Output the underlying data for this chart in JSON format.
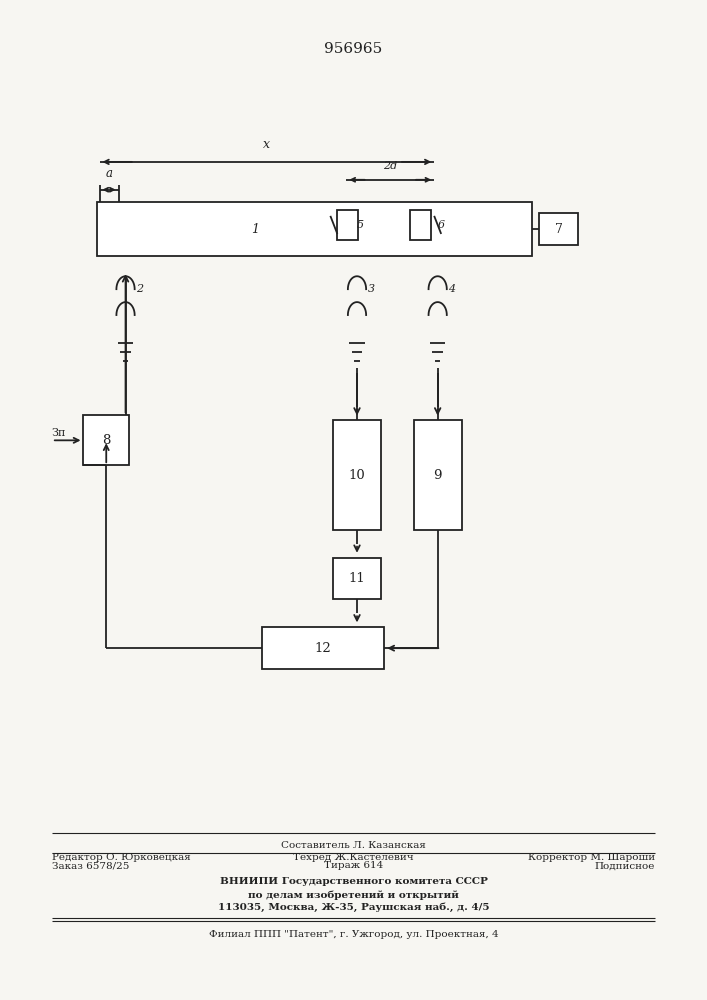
{
  "title": "956965",
  "bg": "#f7f6f2",
  "lc": "#222222",
  "lw": 1.3,
  "footer": {
    "r1_left": "Редактор О. Юрковецкая",
    "r1_ctop": "Составитель Л. Казанская",
    "r1_cbot": "Техред Ж.Кастелевич",
    "r1_right": "Корректор М. Шароши",
    "r2_c1": "Заказ 6578/25",
    "r2_c2": "Тираж 614",
    "r2_c3": "Подписное",
    "r3": "ВНИИПИ Государственного комитета СССР",
    "r4": "по делам изобретений и открытий",
    "r5": "113035, Москва, Ж-35, Раушская наб., д. 4/5",
    "r6": "Филиал ППП \"Патент\", г. Ужгород, ул. Проектная, 4"
  }
}
